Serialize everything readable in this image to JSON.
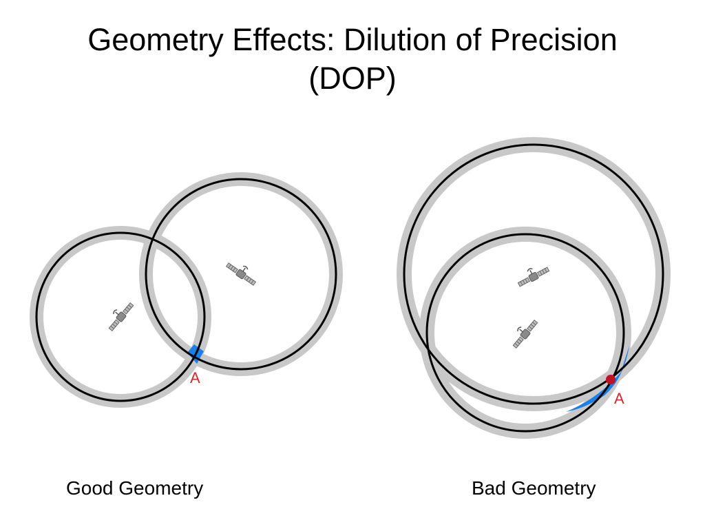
{
  "slide": {
    "title_line1": "Geometry Effects: Dilution of Precision",
    "title_line2": "(DOP)"
  },
  "diagrams": {
    "good": {
      "caption": "Good Geometry",
      "point_label": "A"
    },
    "bad": {
      "caption": "Bad Geometry",
      "point_label": "A"
    }
  },
  "colors": {
    "ring_band": "#c8c8c8",
    "ring_line": "#000000",
    "uncertainty_region": "#1a7fe8",
    "point_label": "#d42a2a",
    "bad_point": "#c0102a",
    "satellite": "#8a8a8a"
  },
  "icons": {
    "satellite": "satellite-icon"
  }
}
